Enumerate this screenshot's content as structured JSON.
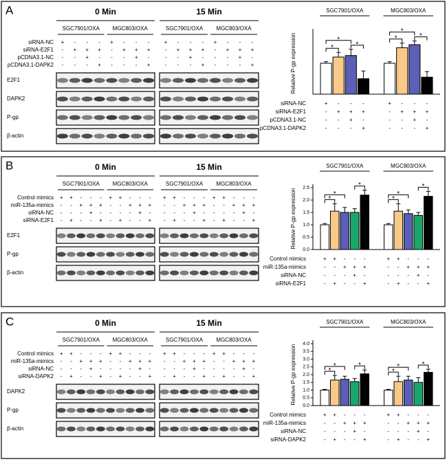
{
  "panels": [
    {
      "letter": "A",
      "blot": {
        "times": [
          {
            "label": "0 Min",
            "cells": [
              "SGC7901/OXA",
              "MGC803/OXA"
            ]
          },
          {
            "label": "15 Min",
            "cells": [
              "SGC7901/OXA",
              "MGC803/OXA"
            ]
          }
        ],
        "rows": [
          {
            "label": "siRNA-NC",
            "signs": [
              "+",
              "-",
              "-",
              "-",
              "+",
              "-",
              "-",
              "-",
              "+",
              "-",
              "-",
              "-",
              "+",
              "-",
              "-",
              "-"
            ]
          },
          {
            "label": "siRNA-E2F1",
            "signs": [
              "-",
              "+",
              "+",
              "+",
              "-",
              "+",
              "+",
              "+",
              "-",
              "+",
              "+",
              "+",
              "-",
              "+",
              "+",
              "+"
            ]
          },
          {
            "label": "pCDNA3.1-NC",
            "signs": [
              "-",
              "-",
              "+",
              "-",
              "-",
              "-",
              "+",
              "-",
              "-",
              "-",
              "+",
              "-",
              "-",
              "-",
              "+",
              "-"
            ]
          },
          {
            "label": "pCDNA3.1-DAPK2",
            "signs": [
              "-",
              "-",
              "-",
              "+",
              "-",
              "-",
              "-",
              "+",
              "-",
              "-",
              "-",
              "+",
              "-",
              "-",
              "-",
              "+"
            ]
          }
        ],
        "proteins": [
          "E2F1",
          "DAPK2",
          "P-gp",
          "β-actin"
        ]
      }
    },
    {
      "letter": "B",
      "blot": {
        "times": [
          {
            "label": "0 Min",
            "cells": [
              "SGC7901/OXA",
              "MGC803/OXA"
            ]
          },
          {
            "label": "15 Min",
            "cells": [
              "SGC7901/OXA",
              "MGC803/OXA"
            ]
          }
        ],
        "rows": [
          {
            "label": "Control mimics",
            "signs": [
              "+",
              "+",
              "-",
              "-",
              "-",
              "+",
              "+",
              "-",
              "-",
              "-",
              "+",
              "+",
              "-",
              "-",
              "-",
              "+",
              "+",
              "-",
              "-",
              "-"
            ]
          },
          {
            "label": "miR-135a-mimics",
            "signs": [
              "-",
              "-",
              "+",
              "+",
              "+",
              "-",
              "-",
              "+",
              "+",
              "+",
              "-",
              "-",
              "+",
              "+",
              "+",
              "-",
              "-",
              "+",
              "+",
              "+"
            ]
          },
          {
            "label": "siRNA-NC",
            "signs": [
              "-",
              "-",
              "-",
              "+",
              "-",
              "-",
              "-",
              "-",
              "+",
              "-",
              "-",
              "-",
              "-",
              "+",
              "-",
              "-",
              "-",
              "-",
              "+",
              "-"
            ]
          },
          {
            "label": "siRNA-E2F1",
            "signs": [
              "-",
              "+",
              "-",
              "-",
              "+",
              "-",
              "+",
              "-",
              "-",
              "+",
              "-",
              "+",
              "-",
              "-",
              "+",
              "-",
              "+",
              "-",
              "-",
              "+"
            ]
          }
        ],
        "proteins": [
          "E2F1",
          "P-gp",
          "β-actin"
        ]
      }
    },
    {
      "letter": "C",
      "blot": {
        "times": [
          {
            "label": "0 Min",
            "cells": [
              "SGC7901/OXA",
              "MGC803/OXA"
            ]
          },
          {
            "label": "15 Min",
            "cells": [
              "SGC7901/OXA",
              "MGC803/OXA"
            ]
          }
        ],
        "rows": [
          {
            "label": "Control mimics",
            "signs": [
              "+",
              "+",
              "-",
              "-",
              "-",
              "+",
              "+",
              "-",
              "-",
              "-",
              "+",
              "+",
              "-",
              "-",
              "-",
              "+",
              "+",
              "-",
              "-",
              "-"
            ]
          },
          {
            "label": "miR-135a-mimics",
            "signs": [
              "-",
              "-",
              "+",
              "+",
              "+",
              "-",
              "-",
              "+",
              "+",
              "+",
              "-",
              "-",
              "+",
              "+",
              "+",
              "-",
              "-",
              "+",
              "+",
              "+"
            ]
          },
          {
            "label": "siRNA-NC",
            "signs": [
              "-",
              "-",
              "-",
              "+",
              "-",
              "-",
              "-",
              "-",
              "+",
              "-",
              "-",
              "-",
              "-",
              "+",
              "-",
              "-",
              "-",
              "-",
              "+",
              "-"
            ]
          },
          {
            "label": "siRNA-DAPK2",
            "signs": [
              "-",
              "+",
              "-",
              "-",
              "+",
              "-",
              "+",
              "-",
              "-",
              "+",
              "-",
              "+",
              "-",
              "-",
              "+",
              "-",
              "+",
              "-",
              "-",
              "+"
            ]
          }
        ],
        "proteins": [
          "DAPK2",
          "P-gp",
          "β-actin"
        ]
      }
    }
  ],
  "chart_data": [
    {
      "type": "bar",
      "ylabel": "Relative P-gp expression",
      "groups": [
        "SGC7901/OXA",
        "MGC803/OXA"
      ],
      "ylim": [
        0,
        2
      ],
      "series": [
        {
          "color": "#ffffff",
          "values": [
            1.0,
            1.0
          ],
          "errors": [
            0.05,
            0.05
          ]
        },
        {
          "color": "#f9c98a",
          "values": [
            1.2,
            1.5
          ],
          "errors": [
            0.15,
            0.15
          ]
        },
        {
          "color": "#5b5fb5",
          "values": [
            1.25,
            1.6
          ],
          "errors": [
            0.2,
            0.12
          ]
        },
        {
          "color": "#000000",
          "values": [
            0.5,
            0.55
          ],
          "errors": [
            0.25,
            0.18
          ]
        }
      ],
      "annotations": [
        {
          "text": "*",
          "group": 0,
          "bars": [
            0,
            1
          ]
        },
        {
          "text": "*",
          "group": 0,
          "bars": [
            0,
            2
          ]
        },
        {
          "text": "*",
          "group": 0,
          "bars": [
            2,
            3
          ]
        },
        {
          "text": "*",
          "group": 1,
          "bars": [
            0,
            1
          ]
        },
        {
          "text": "*",
          "group": 1,
          "bars": [
            0,
            2
          ]
        },
        {
          "text": "*",
          "group": 1,
          "bars": [
            2,
            3
          ]
        }
      ],
      "rows": [
        {
          "label": "siRNA-NC",
          "signs": [
            "+",
            "-",
            "-",
            "-",
            "+",
            "-",
            "-",
            "-"
          ]
        },
        {
          "label": "siRNA-E2F1",
          "signs": [
            "-",
            "+",
            "+",
            "+",
            "-",
            "+",
            "+",
            "+"
          ]
        },
        {
          "label": "pCDNA3.1-NC",
          "signs": [
            "-",
            "-",
            "+",
            "-",
            "-",
            "-",
            "+",
            "-"
          ]
        },
        {
          "label": "pCDNA3.1-DAPK2",
          "signs": [
            "-",
            "-",
            "-",
            "+",
            "-",
            "-",
            "-",
            "+"
          ]
        }
      ]
    },
    {
      "type": "bar",
      "ylabel": "Relative P-gp expression",
      "groups": [
        "SGC7901/OXA",
        "MGC803/OXA"
      ],
      "ylim": [
        0,
        2.5
      ],
      "yticks": [
        {
          "value": 0,
          "label": "0.0"
        },
        0.5,
        {
          "value": 1,
          "label": "1.0"
        },
        1.5,
        {
          "value": 2,
          "label": "2.0"
        },
        2.5
      ],
      "series": [
        {
          "color": "#ffffff",
          "values": [
            1.0,
            1.0
          ],
          "errors": [
            0.05,
            0.05
          ]
        },
        {
          "color": "#f9c98a",
          "values": [
            1.55,
            1.55
          ],
          "errors": [
            0.3,
            0.3
          ]
        },
        {
          "color": "#5b5fb5",
          "values": [
            1.5,
            1.45
          ],
          "errors": [
            0.2,
            0.15
          ]
        },
        {
          "color": "#1aa86a",
          "values": [
            1.5,
            1.38
          ],
          "errors": [
            0.15,
            0.12
          ]
        },
        {
          "color": "#000000",
          "values": [
            2.2,
            2.15
          ],
          "errors": [
            0.2,
            0.2
          ]
        }
      ],
      "annotations": [
        {
          "text": "*",
          "group": 0,
          "bars": [
            0,
            1
          ]
        },
        {
          "text": "*",
          "group": 0,
          "bars": [
            0,
            2
          ]
        },
        {
          "text": "*",
          "group": 0,
          "bars": [
            3,
            4
          ]
        },
        {
          "text": "*",
          "group": 1,
          "bars": [
            0,
            1
          ]
        },
        {
          "text": "*",
          "group": 1,
          "bars": [
            0,
            2
          ]
        },
        {
          "text": "*",
          "group": 1,
          "bars": [
            3,
            4
          ]
        }
      ],
      "rows": [
        {
          "label": "Control mimics",
          "signs": [
            "+",
            "+",
            "-",
            "-",
            "-",
            "+",
            "+",
            "-",
            "-",
            "-"
          ]
        },
        {
          "label": "miR-135a-mimics",
          "signs": [
            "-",
            "-",
            "+",
            "+",
            "+",
            "-",
            "-",
            "+",
            "+",
            "+"
          ]
        },
        {
          "label": "siRNA-NC",
          "signs": [
            "-",
            "-",
            "-",
            "+",
            "-",
            "-",
            "-",
            "-",
            "+",
            "-"
          ]
        },
        {
          "label": "siRNA-E2F1",
          "signs": [
            "-",
            "+",
            "-",
            "-",
            "+",
            "-",
            "+",
            "-",
            "-",
            "+"
          ]
        }
      ]
    },
    {
      "type": "bar",
      "ylabel": "Relative P-gp expression",
      "groups": [
        "SGC7901/OXA",
        "MGC803/OXA"
      ],
      "ylim": [
        0,
        4
      ],
      "yticks": [
        {
          "value": 0,
          "label": "0.0"
        },
        0.5,
        {
          "value": 1,
          "label": "1.0"
        },
        1.5,
        {
          "value": 2,
          "label": "2.0"
        },
        2.5,
        {
          "value": 3,
          "label": "3.0"
        },
        3.5,
        {
          "value": 4,
          "label": "4.0"
        }
      ],
      "series": [
        {
          "color": "#ffffff",
          "values": [
            1.0,
            1.0
          ],
          "errors": [
            0.05,
            0.05
          ]
        },
        {
          "color": "#f9c98a",
          "values": [
            1.65,
            1.55
          ],
          "errors": [
            0.3,
            0.35
          ]
        },
        {
          "color": "#5b5fb5",
          "values": [
            1.7,
            1.65
          ],
          "errors": [
            0.2,
            0.25
          ]
        },
        {
          "color": "#1aa86a",
          "values": [
            1.55,
            1.5
          ],
          "errors": [
            0.2,
            0.3
          ]
        },
        {
          "color": "#000000",
          "values": [
            2.05,
            2.15
          ],
          "errors": [
            0.25,
            0.2
          ]
        }
      ],
      "annotations": [
        {
          "text": "*",
          "group": 0,
          "bars": [
            0,
            1
          ]
        },
        {
          "text": "*",
          "group": 0,
          "bars": [
            0,
            2
          ]
        },
        {
          "text": "*",
          "group": 0,
          "bars": [
            3,
            4
          ]
        },
        {
          "text": "*",
          "group": 1,
          "bars": [
            0,
            1
          ]
        },
        {
          "text": "*",
          "group": 1,
          "bars": [
            0,
            2
          ]
        },
        {
          "text": "*",
          "group": 1,
          "bars": [
            3,
            4
          ]
        }
      ],
      "rows": [
        {
          "label": "Control mimics",
          "signs": [
            "+",
            "+",
            "-",
            "-",
            "-",
            "+",
            "+",
            "-",
            "-",
            "-"
          ]
        },
        {
          "label": "miR-135a-mimics",
          "signs": [
            "-",
            "-",
            "+",
            "+",
            "+",
            "-",
            "-",
            "+",
            "+",
            "+"
          ]
        },
        {
          "label": "siRNA-NC",
          "signs": [
            "-",
            "-",
            "-",
            "+",
            "-",
            "-",
            "-",
            "-",
            "+",
            "-"
          ]
        },
        {
          "label": "siRNA-DAPK2",
          "signs": [
            "-",
            "+",
            "-",
            "-",
            "+",
            "-",
            "+",
            "-",
            "-",
            "+"
          ]
        }
      ]
    }
  ]
}
